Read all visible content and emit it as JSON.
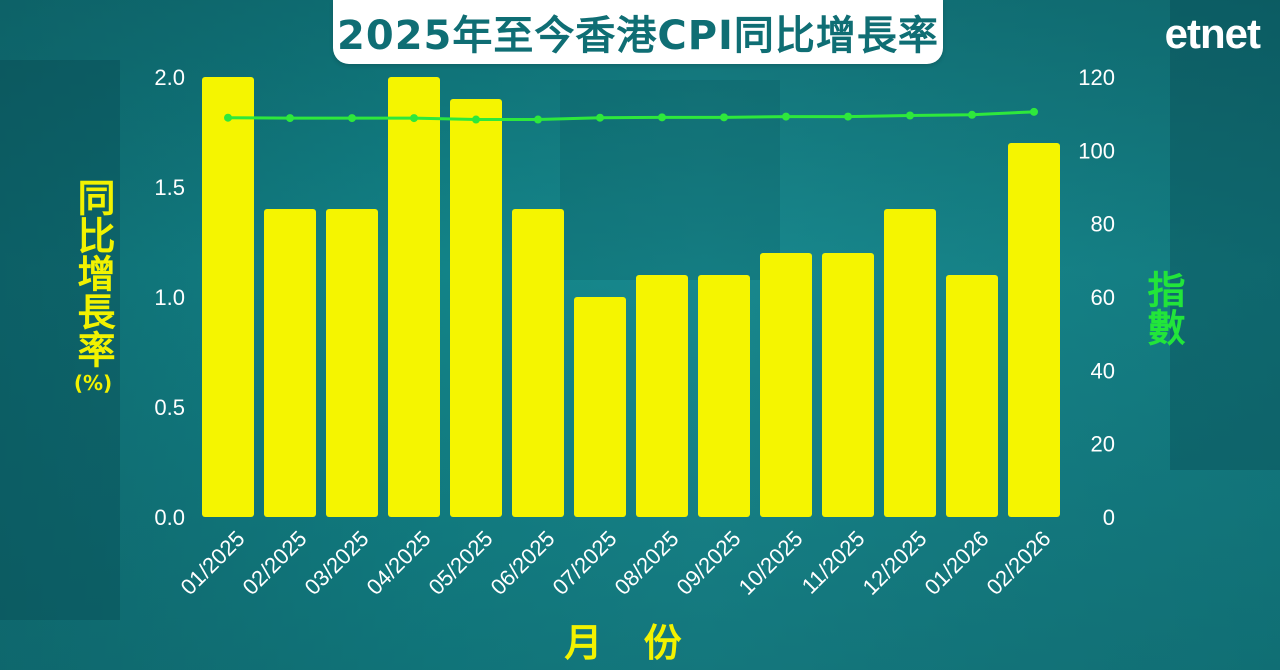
{
  "title": "2025年至今香港CPI同比增長率",
  "logo": "etnet",
  "colors": {
    "bar": "#f5f500",
    "line": "#2ee83c",
    "tick_text": "#ffffff",
    "title_text": "#0f6e74",
    "left_label": "#f2f200",
    "right_label": "#22e53a"
  },
  "chart_data": {
    "type": "bar",
    "title": "2025年至今香港CPI同比增長率",
    "xlabel": "月 份",
    "ylabel": "同比增長率",
    "ylabel_unit": "(%)",
    "y2label": "指數",
    "categories": [
      "01/2025",
      "02/2025",
      "03/2025",
      "04/2025",
      "05/2025",
      "06/2025",
      "07/2025",
      "08/2025",
      "09/2025",
      "10/2025",
      "11/2025",
      "12/2025",
      "01/2026",
      "02/2026"
    ],
    "series": [
      {
        "type": "bar",
        "axis": "left",
        "values": [
          2.0,
          1.4,
          1.4,
          2.0,
          1.9,
          1.4,
          1.0,
          1.1,
          1.1,
          1.2,
          1.2,
          1.4,
          1.1,
          1.7
        ]
      },
      {
        "type": "line",
        "axis": "right",
        "values": [
          108.9,
          108.8,
          108.8,
          108.8,
          108.4,
          108.4,
          108.9,
          109.0,
          109.0,
          109.2,
          109.2,
          109.5,
          109.7,
          110.5
        ]
      }
    ],
    "ylim": [
      0,
      2.0
    ],
    "yticks": [
      "0.0",
      "0.5",
      "1.0",
      "1.5",
      "2.0"
    ],
    "y2lim": [
      0,
      120
    ],
    "y2ticks": [
      "0",
      "20",
      "40",
      "60",
      "80",
      "100",
      "120"
    ],
    "grid": false,
    "legend": "none"
  }
}
